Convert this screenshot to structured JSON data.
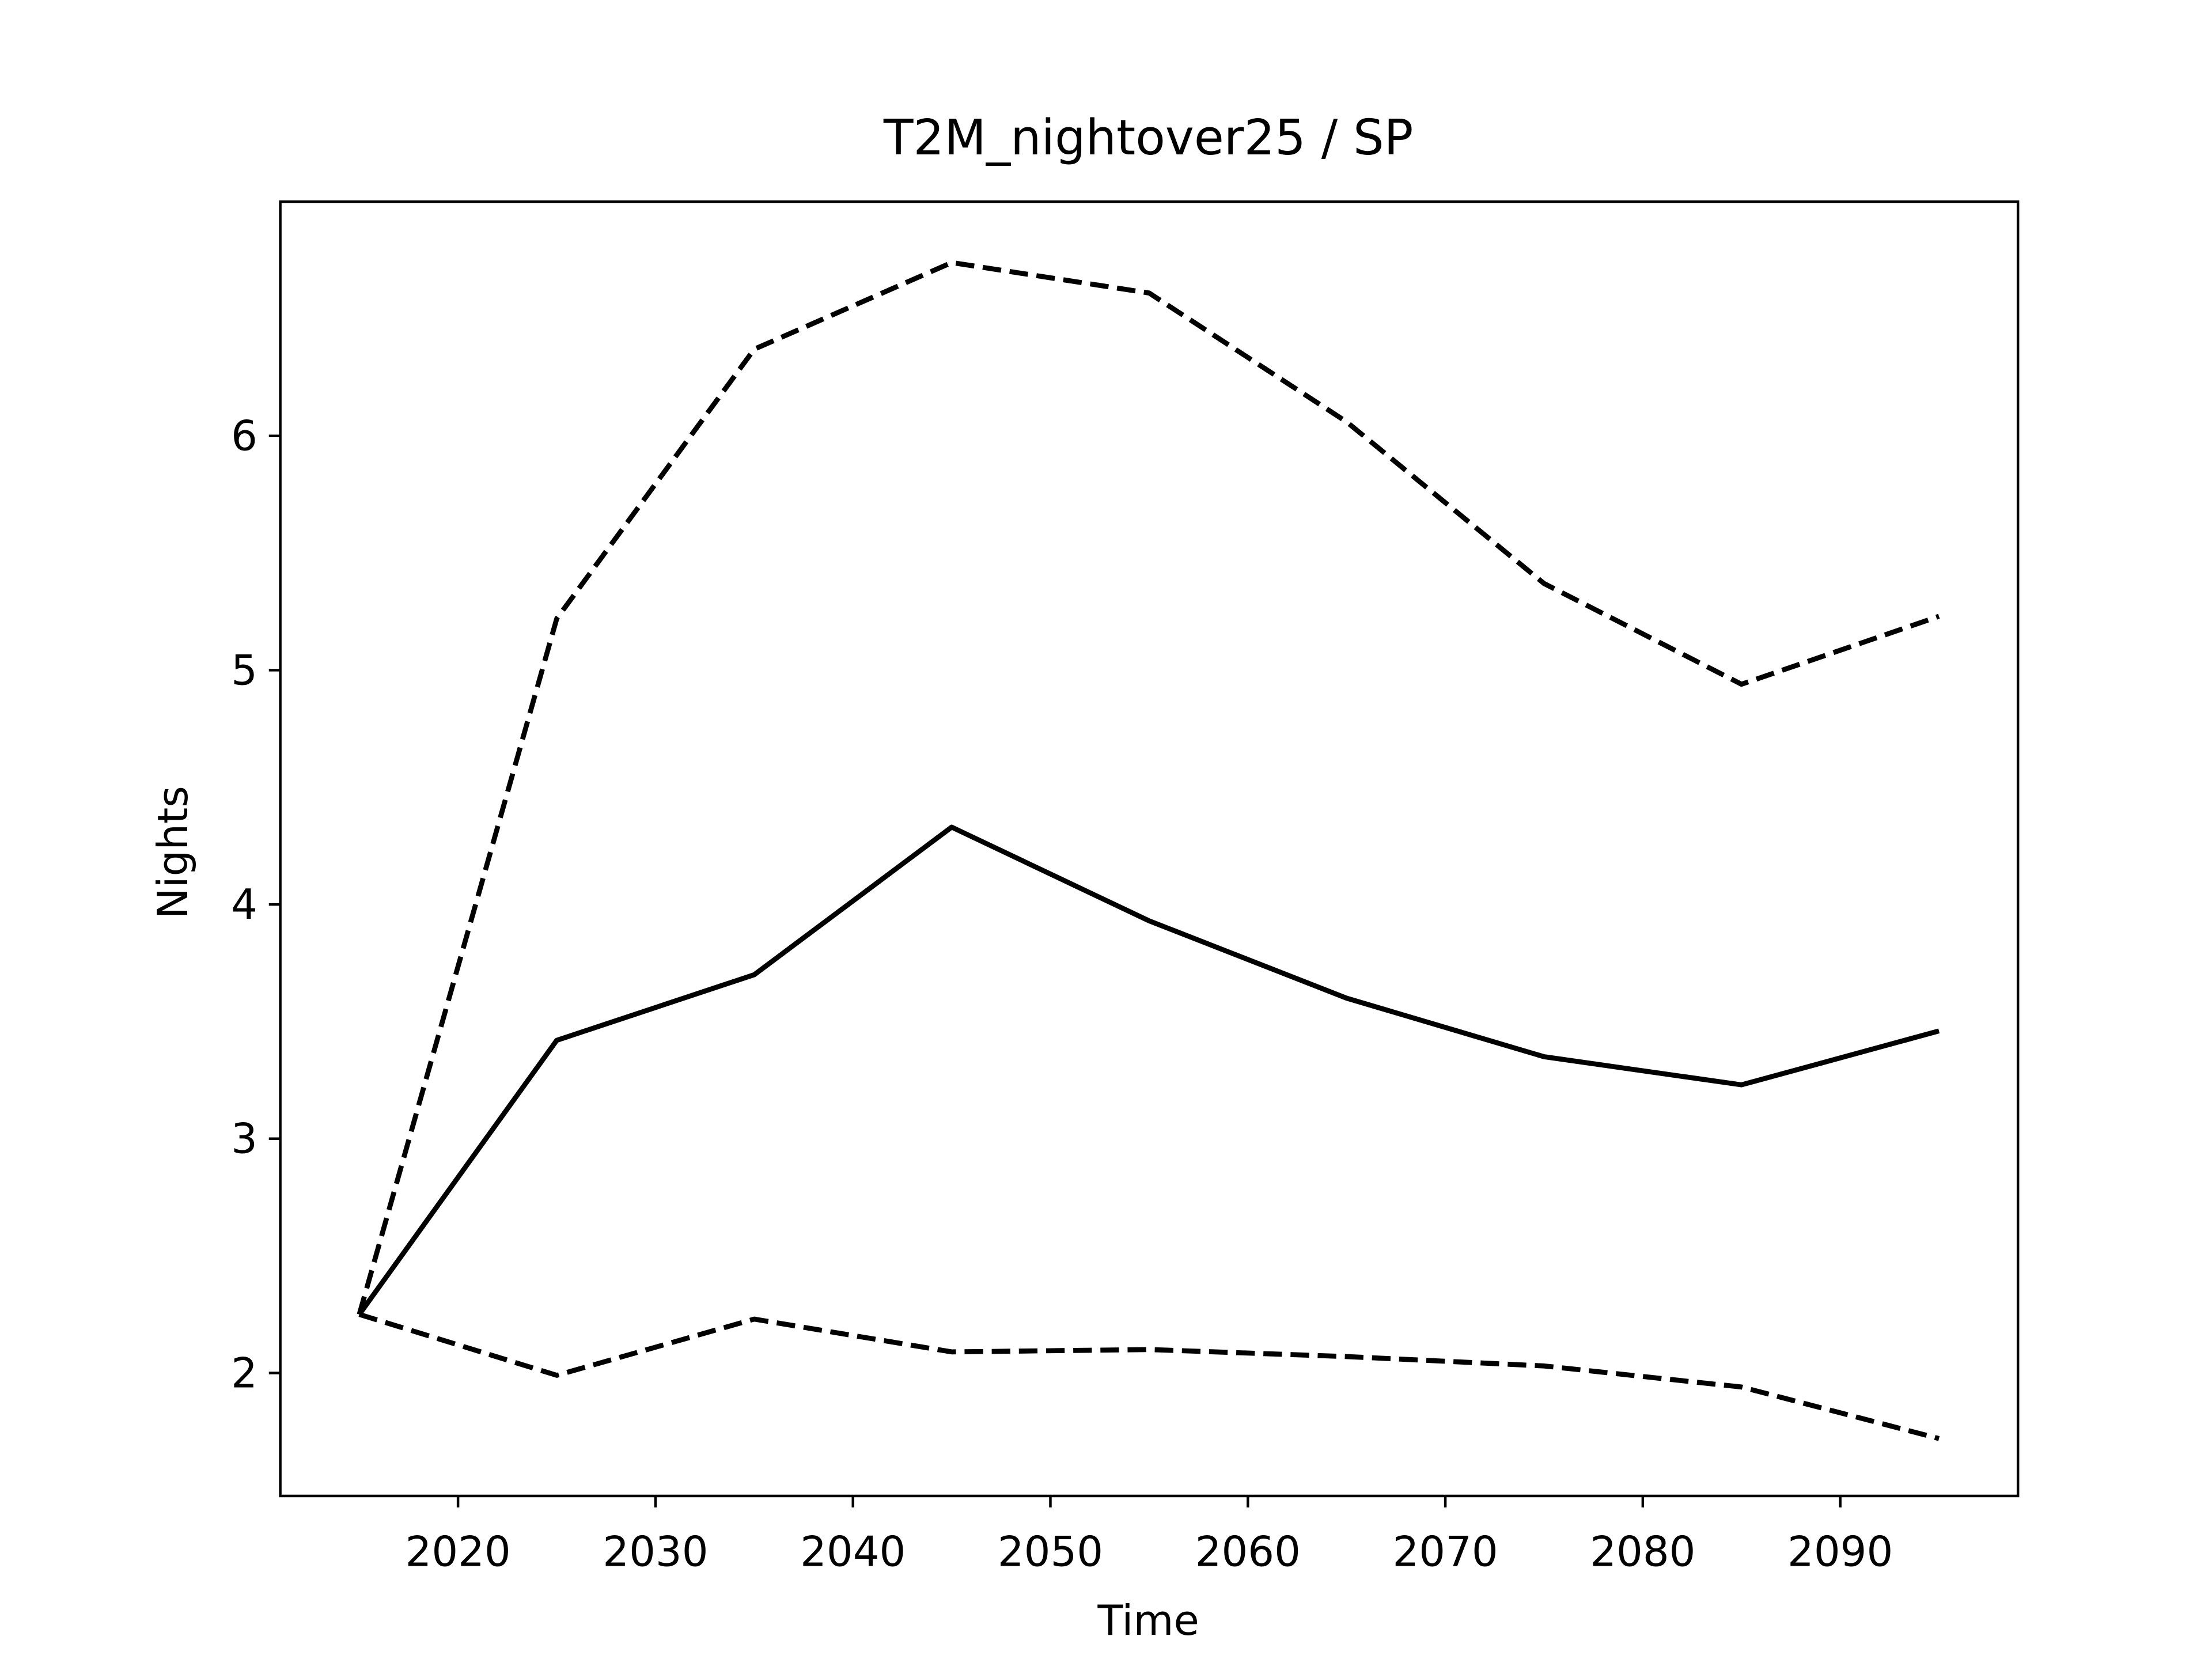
{
  "chart_data": {
    "type": "line",
    "title": "T2M_nightover25 / SP",
    "x_label": "Time",
    "y_label": "Nights",
    "x": [
      2015,
      2025,
      2035,
      2045,
      2055,
      2065,
      2075,
      2085,
      2095
    ],
    "series": [
      {
        "color": "#000000",
        "linestyle": "solid",
        "values": [
          2.25,
          3.42,
          3.7,
          4.33,
          3.93,
          3.6,
          3.35,
          3.23,
          3.46
        ]
      },
      {
        "color": "#000000",
        "linestyle": "dashed",
        "values": [
          2.25,
          5.22,
          6.37,
          6.74,
          6.61,
          6.06,
          5.37,
          4.94,
          5.23
        ]
      },
      {
        "color": "#000000",
        "linestyle": "dashed",
        "values": [
          2.25,
          1.99,
          2.23,
          2.09,
          2.1,
          2.07,
          2.03,
          1.94,
          1.72
        ]
      }
    ],
    "xlim": [
      2011,
      2099
    ],
    "ylim": [
      1.475,
      7.0
    ],
    "xticks": [
      2020,
      2030,
      2040,
      2050,
      2060,
      2070,
      2080,
      2090
    ],
    "yticks": [
      2,
      3,
      4,
      5,
      6
    ],
    "grid": false
  }
}
